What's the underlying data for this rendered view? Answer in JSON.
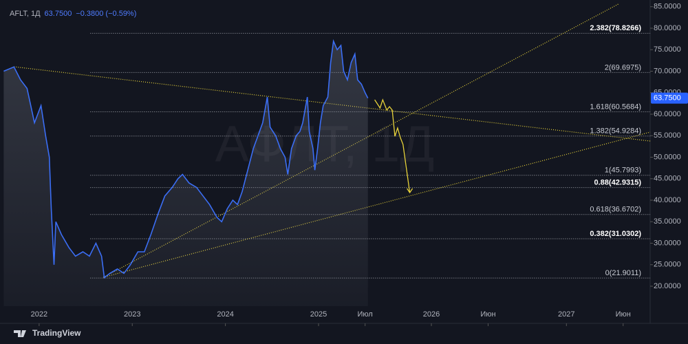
{
  "chart_data": {
    "type": "line",
    "symbol": "AFLT, 1Д",
    "price_label": "63.7500",
    "change": "−0.3800 (−0.59%)",
    "watermark": "АФЛТ, 1Д",
    "brand": "TradingView",
    "color": "#3b6ef5",
    "x": [
      2021.62,
      2021.73,
      2021.8,
      2021.87,
      2021.95,
      2022.02,
      2022.07,
      2022.11,
      2022.13,
      2022.16,
      2022.18,
      2022.24,
      2022.32,
      2022.39,
      2022.47,
      2022.54,
      2022.61,
      2022.67,
      2022.7,
      2022.76,
      2022.84,
      2022.91,
      2022.98,
      2023.06,
      2023.13,
      2023.2,
      2023.28,
      2023.35,
      2023.43,
      2023.49,
      2023.54,
      2023.61,
      2023.69,
      2023.76,
      2023.83,
      2023.91,
      2023.96,
      2024.02,
      2024.08,
      2024.13,
      2024.18,
      2024.24,
      2024.3,
      2024.35,
      2024.4,
      2024.45,
      2024.48,
      2024.54,
      2024.59,
      2024.64,
      2024.67,
      2024.71,
      2024.76,
      2024.8,
      2024.83,
      2024.88,
      2024.9,
      2024.94,
      2024.96,
      2024.99,
      2025.02,
      2025.05,
      2025.1,
      2025.13,
      2025.16,
      2025.2,
      2025.24,
      2025.27,
      2025.31,
      2025.35,
      2025.39,
      2025.42,
      2025.46,
      2025.5,
      2025.53
    ],
    "values": [
      70,
      71,
      68,
      66,
      58,
      62,
      55,
      50,
      38,
      25,
      35,
      32,
      29,
      27,
      28,
      27,
      30,
      27,
      22,
      23,
      24,
      23,
      25,
      28,
      28,
      32,
      37,
      41,
      43,
      45,
      46,
      44,
      43,
      41,
      39,
      36,
      35,
      38,
      40,
      39,
      42,
      47,
      52,
      55,
      58,
      64,
      57,
      55,
      52,
      50,
      46,
      52,
      55,
      56,
      58,
      64,
      56,
      52,
      47,
      52,
      58,
      62,
      64,
      72,
      77,
      75,
      76,
      70,
      68,
      72,
      74,
      68,
      67,
      65,
      63.75
    ],
    "xlim": [
      2021.58,
      2027.62
    ],
    "ylim": [
      15.36,
      86.56
    ],
    "xticks": [
      {
        "value": 2022,
        "label": "2022"
      },
      {
        "value": 2023,
        "label": "2023"
      },
      {
        "value": 2024,
        "label": "2024"
      },
      {
        "value": 2025,
        "label": "2025"
      },
      {
        "value": 2025.5,
        "label": "Июл"
      },
      {
        "value": 2026,
        "label": "2026"
      },
      {
        "value": 2026.42,
        "label": "Июн"
      },
      {
        "value": 2027,
        "label": "2027"
      },
      {
        "value": 2027.42,
        "label": "Июн"
      }
    ],
    "yticks": [
      {
        "value": 20,
        "label": "20.0000"
      },
      {
        "value": 25,
        "label": "25.0000"
      },
      {
        "value": 30,
        "label": "30.0000"
      },
      {
        "value": 35,
        "label": "35.0000"
      },
      {
        "value": 40,
        "label": "40.0000"
      },
      {
        "value": 45,
        "label": "45.0000"
      },
      {
        "value": 50,
        "label": "50.0000"
      },
      {
        "value": 55,
        "label": "55.0000"
      },
      {
        "value": 60,
        "label": "60.0000"
      },
      {
        "value": 65,
        "label": "65.0000"
      },
      {
        "value": 70,
        "label": "70.0000"
      },
      {
        "value": 75,
        "label": "75.0000"
      },
      {
        "value": 80,
        "label": "80.0000"
      },
      {
        "value": 85,
        "label": "85.0000"
      }
    ],
    "fib_levels": [
      {
        "value": 78.8266,
        "label": "2.382(78.8266)",
        "bold": true
      },
      {
        "value": 69.6975,
        "label": "2(69.6975)",
        "bold": false
      },
      {
        "value": 60.5684,
        "label": "1.618(60.5684)",
        "bold": false
      },
      {
        "value": 54.9284,
        "label": "1.382(54.9284)",
        "bold": false
      },
      {
        "value": 45.7993,
        "label": "1(45.7993)",
        "bold": false
      },
      {
        "value": 42.9315,
        "label": "0.88(42.9315)",
        "bold": true
      },
      {
        "value": 36.6702,
        "label": "0.618(36.6702)",
        "bold": false
      },
      {
        "value": 31.0302,
        "label": "0.382(31.0302)",
        "bold": true
      },
      {
        "value": 21.9011,
        "label": "0(21.9011)",
        "bold": false
      }
    ],
    "fib_start": 2022.55,
    "trend_lines": [
      {
        "x1": 2021.73,
        "y1": 71.04,
        "x2": 2027.62,
        "y2": 53.76
      },
      {
        "x1": 2022.69,
        "y1": 22.08,
        "x2": 2027.39,
        "y2": 85.7
      },
      {
        "x1": 2022.69,
        "y1": 22.08,
        "x2": 2027.62,
        "y2": 55.84
      }
    ],
    "projection": {
      "color": "#e8d33a",
      "x": [
        2025.58,
        2025.62,
        2025.64,
        2025.67,
        2025.69,
        2025.71,
        2025.73,
        2025.75,
        2025.77,
        2025.79,
        2025.84
      ],
      "values": [
        63.36,
        61.44,
        63.36,
        60.96,
        61.76,
        60.96,
        54.88,
        56.8,
        54.56,
        52.96,
        41.76
      ]
    }
  }
}
